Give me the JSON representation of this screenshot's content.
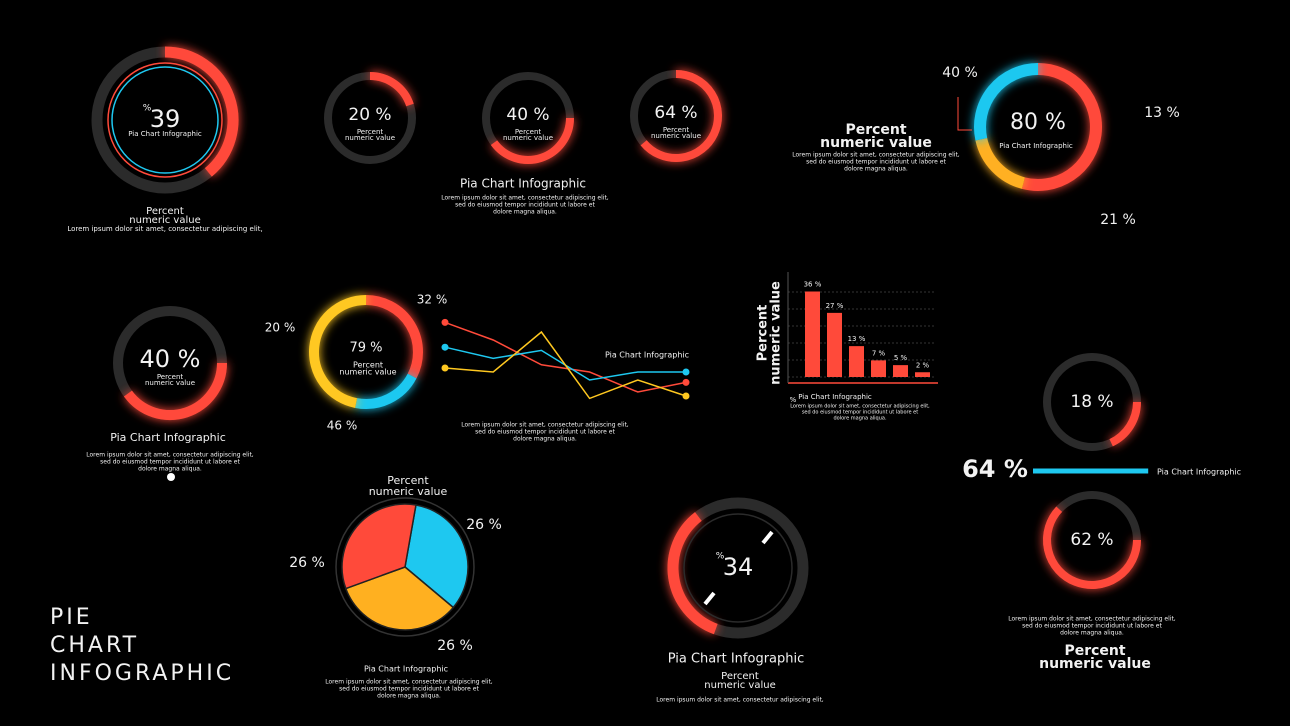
{
  "title_lines": [
    "PIE",
    "CHART",
    "INFOGRAPHIC"
  ],
  "chart_data": [
    {
      "type": "gauge",
      "values": [
        39
      ],
      "value_labels": [
        "39"
      ],
      "unit": "%",
      "inner": "Pia Chart Infographic",
      "caption_lines": [
        "Percent",
        "numeric value"
      ],
      "note": [
        "Lorem ipsum dolor sit amet, consectetur adipiscing elit,"
      ],
      "color": "#ff4a3a"
    },
    {
      "type": "donut",
      "values": [
        20
      ],
      "value_labels": [
        "20 %"
      ],
      "inner_lines": [
        "Percent",
        "numeric value"
      ],
      "color": "#ff4a3a"
    },
    {
      "type": "donut",
      "values": [
        40
      ],
      "value_labels": [
        "40 %"
      ],
      "inner_lines": [
        "Percent",
        "numeric value"
      ],
      "title": "Pia Chart Infographic",
      "note": [
        "Lorem ipsum dolor sit amet, consectetur adipiscing elit,",
        "sed do eiusmod tempor incididunt ut labore et",
        "dolore magna aliqua."
      ],
      "color": "#ff4a3a"
    },
    {
      "type": "donut",
      "values": [
        64
      ],
      "value_labels": [
        "64 %"
      ],
      "inner_lines": [
        "Percent",
        "numeric value"
      ],
      "color": "#ff4a3a"
    },
    {
      "type": "ring",
      "values": [
        40,
        13,
        21
      ],
      "value_labels": [
        "40 %",
        "13 %",
        "21 %"
      ],
      "colors": [
        "#ff4a3a",
        "#ffb020",
        "#1ec8f0"
      ],
      "center_label": "80 %",
      "inner": "Pia Chart Infographic",
      "title_lines": [
        "Percent",
        "numeric value"
      ],
      "note": [
        "Lorem ipsum dolor sit amet, consectetur adipiscing elit,",
        "sed do eiusmod tempor incididunt ut labore et",
        "dolore magna aliqua."
      ]
    },
    {
      "type": "donut",
      "values": [
        40
      ],
      "value_labels": [
        "40 %"
      ],
      "inner_lines": [
        "Percent",
        "numeric value"
      ],
      "title": "Pia Chart Infographic",
      "note": [
        "Lorem ipsum dolor sit amet, consectetur adipiscing elit,",
        "sed do eiusmod tempor incididunt ut labore et",
        "dolore magna aliqua."
      ],
      "color": "#ff4a3a"
    },
    {
      "type": "ring",
      "values": [
        32,
        20,
        46
      ],
      "value_labels": [
        "32 %",
        "20 %",
        "46 %"
      ],
      "colors": [
        "#ff4a3a",
        "#1ec8f0",
        "#ffc820"
      ],
      "center_label": "79 %",
      "inner_lines": [
        "Percent",
        "numeric value"
      ]
    },
    {
      "type": "line",
      "categories": [
        null,
        null,
        null,
        null,
        null,
        null
      ],
      "ylim": [
        0,
        100
      ],
      "series": [
        {
          "color": "#ff4a3a",
          "values": [
            97,
            75,
            44,
            35,
            10,
            22
          ]
        },
        {
          "color": "#1ec8f0",
          "values": [
            66,
            52,
            62,
            25,
            35,
            35
          ]
        },
        {
          "color": "#ffc820",
          "values": [
            40,
            35,
            85,
            2,
            25,
            5
          ]
        }
      ],
      "label": "Pia Chart Infographic",
      "note": [
        "Lorem ipsum dolor sit amet, consectetur adipiscing elit,",
        "sed do eiusmod tempor incididunt ut labore et",
        "dolore magna aliqua."
      ]
    },
    {
      "type": "bar",
      "categories": [
        null,
        null,
        null,
        null,
        null,
        null
      ],
      "values": [
        36,
        27,
        13,
        7,
        5,
        2
      ],
      "value_labels": [
        "36 %",
        "27 %",
        "13 %",
        "7 %",
        "5 %",
        "2 %"
      ],
      "ylim": [
        0,
        40
      ],
      "color": "#ff4a3a",
      "ylabel_lines": [
        "Percent",
        "numeric value"
      ],
      "unit": "%",
      "title": "Pia Chart Infographic",
      "note": [
        "Lorem ipsum dolor sit amet, consectetur adipiscing elit,",
        "sed do eiusmod tempor incididunt ut labore et",
        "dolore magna aliqua."
      ]
    },
    {
      "type": "donut",
      "values": [
        18
      ],
      "value_labels": [
        "18 %"
      ],
      "color": "#ff4a3a"
    },
    {
      "type": "progress",
      "values": [
        64
      ],
      "value_labels": [
        "64 %"
      ],
      "label": "Pia Chart Infographic",
      "xlim": [
        0,
        100
      ],
      "color": "#1ec8f0"
    },
    {
      "type": "donut",
      "values": [
        62
      ],
      "value_labels": [
        "62 %"
      ],
      "note": [
        "Lorem ipsum dolor sit amet, consectetur adipiscing elit,",
        "sed do eiusmod tempor incididunt ut labore et",
        "dolore magna aliqua."
      ],
      "title_lines": [
        "Percent",
        "numeric value"
      ],
      "color": "#ff4a3a"
    },
    {
      "type": "pie",
      "values": [
        26,
        26,
        26
      ],
      "value_labels": [
        "26 %",
        "26 %",
        "26 %"
      ],
      "colors": [
        "#1ec8f0",
        "#ffb020",
        "#ff4a3a"
      ],
      "title_lines": [
        "Percent",
        "numeric value"
      ],
      "subtitle": "Pia Chart Infographic",
      "note": [
        "Lorem ipsum dolor sit amet, consectetur adipiscing elit,",
        "sed do eiusmod tempor incididunt ut labore et",
        "dolore magna aliqua."
      ]
    },
    {
      "type": "gauge",
      "values": [
        34
      ],
      "value_labels": [
        "34"
      ],
      "unit": "%",
      "title": "Pia Chart Infographic",
      "caption_lines": [
        "Percent",
        "numeric value"
      ],
      "note": [
        "Lorem ipsum dolor sit amet, consectetur adipiscing elit,"
      ],
      "color": "#ff4a3a"
    }
  ]
}
